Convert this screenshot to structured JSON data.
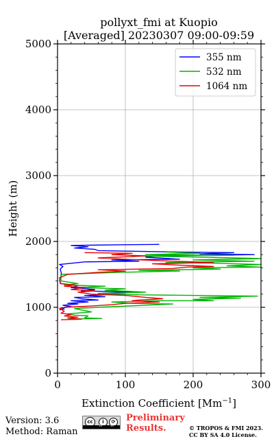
{
  "chart_data": {
    "type": "line",
    "title": "pollyxt_fmi at Kuopio",
    "subtitle": "[Averaged] 20230307 09:00-09:59",
    "xlabel": "Extinction Coefficient [Mm",
    "xlabel_sup": "−1",
    "xlabel_tail": "]",
    "ylabel": "Height (m)",
    "xlim": [
      0,
      300
    ],
    "ylim": [
      0,
      5000
    ],
    "xticks": [
      0,
      100,
      200,
      300
    ],
    "yticks": [
      0,
      1000,
      2000,
      3000,
      4000,
      5000
    ],
    "grid": true,
    "legend_position": "top-right",
    "series": [
      {
        "name": "355 nm",
        "color": "#0000ff",
        "points": [
          [
            3,
            960
          ],
          [
            10,
            975
          ],
          [
            5,
            990
          ],
          [
            20,
            1010
          ],
          [
            8,
            1030
          ],
          [
            30,
            1050
          ],
          [
            15,
            1060
          ],
          [
            45,
            1080
          ],
          [
            20,
            1100
          ],
          [
            60,
            1110
          ],
          [
            35,
            1130
          ],
          [
            25,
            1150
          ],
          [
            70,
            1160
          ],
          [
            40,
            1180
          ],
          [
            100,
            1200
          ],
          [
            60,
            1210
          ],
          [
            110,
            1230
          ],
          [
            35,
            1250
          ],
          [
            55,
            1270
          ],
          [
            20,
            1300
          ],
          [
            30,
            1330
          ],
          [
            5,
            1360
          ],
          [
            3,
            1400
          ],
          [
            6,
            1500
          ],
          [
            4,
            1580
          ],
          [
            8,
            1620
          ],
          [
            3,
            1650
          ],
          [
            40,
            1690
          ],
          [
            120,
            1700
          ],
          [
            80,
            1720
          ],
          [
            180,
            1730
          ],
          [
            130,
            1760
          ],
          [
            150,
            1780
          ],
          [
            290,
            1800
          ],
          [
            210,
            1810
          ],
          [
            260,
            1830
          ],
          [
            180,
            1840
          ],
          [
            60,
            1860
          ],
          [
            55,
            1880
          ],
          [
            25,
            1900
          ],
          [
            45,
            1920
          ],
          [
            20,
            1940
          ],
          [
            95,
            1950
          ],
          [
            150,
            1955
          ]
        ]
      },
      {
        "name": "532 nm",
        "color": "#00b400",
        "points": [
          [
            15,
            820
          ],
          [
            65,
            830
          ],
          [
            40,
            840
          ],
          [
            45,
            870
          ],
          [
            25,
            880
          ],
          [
            15,
            900
          ],
          [
            50,
            930
          ],
          [
            40,
            950
          ],
          [
            25,
            980
          ],
          [
            60,
            1000
          ],
          [
            170,
            1050
          ],
          [
            110,
            1060
          ],
          [
            80,
            1080
          ],
          [
            140,
            1100
          ],
          [
            230,
            1100
          ],
          [
            200,
            1120
          ],
          [
            270,
            1140
          ],
          [
            210,
            1150
          ],
          [
            295,
            1170
          ],
          [
            120,
            1190
          ],
          [
            60,
            1210
          ],
          [
            130,
            1230
          ],
          [
            70,
            1260
          ],
          [
            100,
            1280
          ],
          [
            30,
            1300
          ],
          [
            70,
            1320
          ],
          [
            10,
            1340
          ],
          [
            30,
            1360
          ],
          [
            5,
            1400
          ],
          [
            5,
            1500
          ],
          [
            90,
            1530
          ],
          [
            180,
            1550
          ],
          [
            120,
            1560
          ],
          [
            240,
            1580
          ],
          [
            200,
            1600
          ],
          [
            300,
            1610
          ],
          [
            250,
            1630
          ],
          [
            300,
            1650
          ],
          [
            230,
            1670
          ],
          [
            160,
            1680
          ],
          [
            290,
            1700
          ],
          [
            200,
            1720
          ],
          [
            300,
            1740
          ],
          [
            220,
            1760
          ],
          [
            110,
            1780
          ],
          [
            260,
            1790
          ],
          [
            130,
            1800
          ],
          [
            210,
            1820
          ],
          [
            160,
            1840
          ]
        ]
      },
      {
        "name": "1064 nm",
        "color": "#e60000",
        "points": [
          [
            5,
            810
          ],
          [
            35,
            820
          ],
          [
            15,
            840
          ],
          [
            30,
            850
          ],
          [
            10,
            870
          ],
          [
            20,
            890
          ],
          [
            5,
            910
          ],
          [
            10,
            940
          ],
          [
            3,
            980
          ],
          [
            10,
            1000
          ],
          [
            50,
            1020
          ],
          [
            80,
            1040
          ],
          [
            100,
            1060
          ],
          [
            150,
            1080
          ],
          [
            110,
            1100
          ],
          [
            120,
            1110
          ],
          [
            155,
            1130
          ],
          [
            130,
            1150
          ],
          [
            100,
            1180
          ],
          [
            50,
            1200
          ],
          [
            30,
            1230
          ],
          [
            55,
            1250
          ],
          [
            20,
            1270
          ],
          [
            40,
            1300
          ],
          [
            10,
            1320
          ],
          [
            25,
            1340
          ],
          [
            4,
            1360
          ],
          [
            3,
            1450
          ],
          [
            15,
            1500
          ],
          [
            60,
            1530
          ],
          [
            100,
            1550
          ],
          [
            60,
            1570
          ],
          [
            170,
            1590
          ],
          [
            190,
            1610
          ],
          [
            230,
            1620
          ],
          [
            180,
            1640
          ],
          [
            140,
            1660
          ],
          [
            230,
            1680
          ],
          [
            170,
            1700
          ],
          [
            100,
            1730
          ],
          [
            60,
            1750
          ],
          [
            110,
            1770
          ],
          [
            130,
            1780
          ],
          [
            80,
            1800
          ],
          [
            110,
            1820
          ],
          [
            40,
            1830
          ]
        ]
      }
    ]
  },
  "footer": {
    "version": "Version: 3.6",
    "method": "Method: Raman",
    "cc_by": "BY",
    "cc_sa": "SA",
    "prelim_line1": "Preliminary",
    "prelim_line2": "Results.",
    "copyright_line1": "© TROPOS & FMI 2023.",
    "copyright_line2": "CC BY SA 4.0 License."
  }
}
